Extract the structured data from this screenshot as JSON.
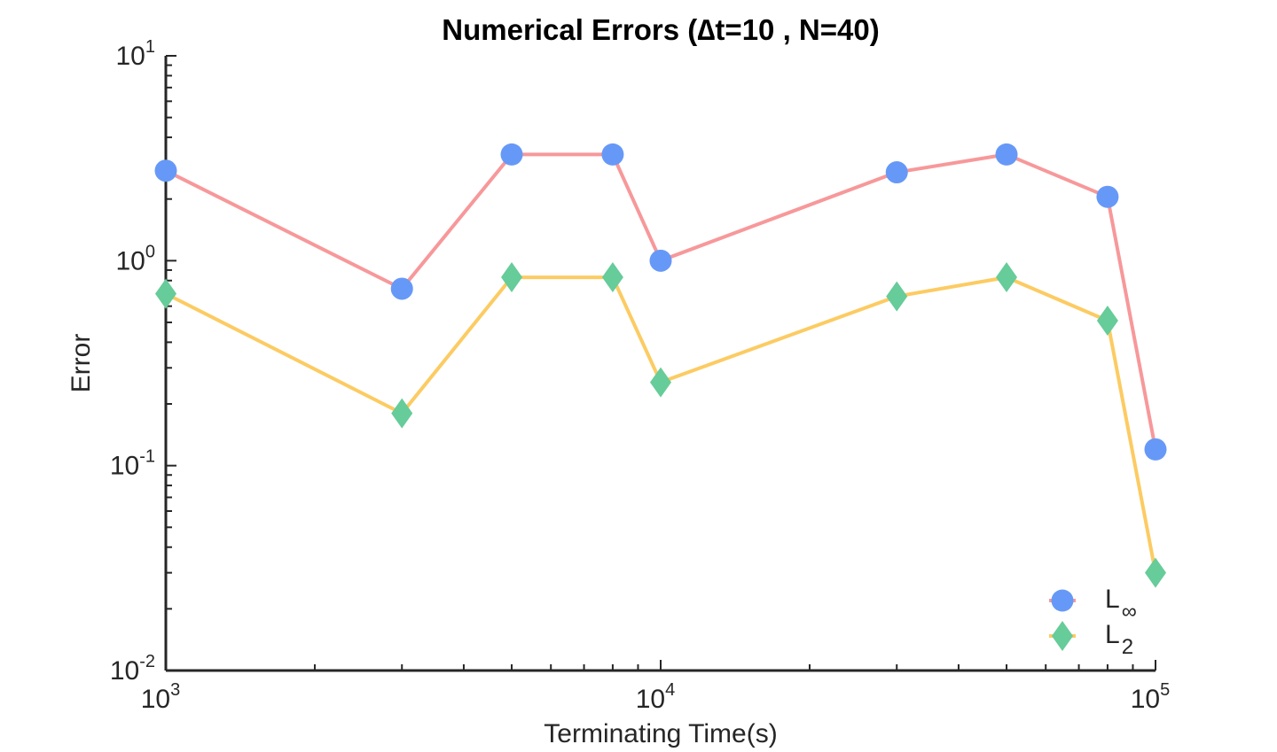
{
  "chart_data": {
    "type": "line",
    "title": "Numerical Errors (∆t=10 , N=40)",
    "xlabel": "Terminating Time(s)",
    "ylabel": "Error",
    "xscale": "log",
    "yscale": "log",
    "xlim": [
      1000,
      100000
    ],
    "ylim": [
      0.01,
      10
    ],
    "x_ticks": [
      {
        "base": "10",
        "exp": "3"
      },
      {
        "base": "10",
        "exp": "4"
      },
      {
        "base": "10",
        "exp": "5"
      }
    ],
    "y_ticks": [
      {
        "base": "10",
        "exp": "-2"
      },
      {
        "base": "10",
        "exp": "-1"
      },
      {
        "base": "10",
        "exp": "0"
      },
      {
        "base": "10",
        "exp": "1"
      }
    ],
    "grid": false,
    "legend_position": "bottom-right",
    "x": [
      1000,
      3000,
      5000,
      8000,
      10000,
      30000,
      50000,
      80000,
      100000
    ],
    "series": [
      {
        "label_main": "L",
        "label_sub": "∞",
        "marker": "circle",
        "line_color": "#F7989A",
        "marker_color": "#6699F7",
        "values": [
          2.75,
          0.73,
          3.3,
          3.3,
          1.0,
          2.7,
          3.3,
          2.05,
          0.12
        ]
      },
      {
        "label_main": "L",
        "label_sub": "2",
        "marker": "diamond",
        "line_color": "#FCCB62",
        "marker_color": "#66CC99",
        "values": [
          0.69,
          0.18,
          0.83,
          0.83,
          0.255,
          0.67,
          0.83,
          0.51,
          0.03
        ]
      }
    ]
  }
}
